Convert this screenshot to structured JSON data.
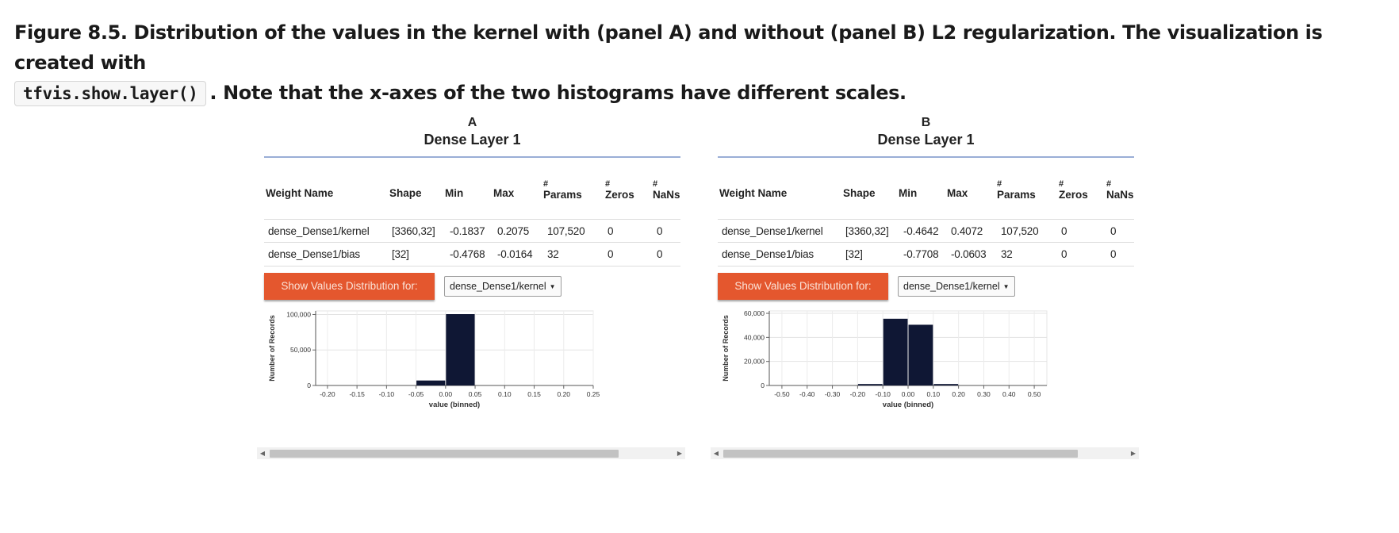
{
  "caption": {
    "prefix": "Figure 8.5. Distribution of the values in the kernel with (panel A) and without (panel B) L2 regularization. The visualization is created with",
    "code": "tfvis.show.layer()",
    "suffix": ". Note that the x-axes of the two histograms have different scales."
  },
  "panels": [
    {
      "letter": "A",
      "title": "Dense Layer 1",
      "columns": {
        "weight_name": "Weight Name",
        "shape": "Shape",
        "min": "Min",
        "max": "Max",
        "hash": "#",
        "params": "Params",
        "zeros": "Zeros",
        "nans": "NaNs"
      },
      "rows": [
        {
          "name": "dense_Dense1/kernel",
          "shape": "[3360,32]",
          "min": "-0.1837",
          "max": "0.2075",
          "params": "107,520",
          "zeros": "0",
          "nans": "0"
        },
        {
          "name": "dense_Dense1/bias",
          "shape": "[32]",
          "min": "-0.4768",
          "max": "-0.0164",
          "params": "32",
          "zeros": "0",
          "nans": "0"
        }
      ],
      "show_button": "Show Values Distribution for:",
      "selected_weight": "dense_Dense1/kernel",
      "bar_color": "#0f1734",
      "chart_data": {
        "type": "bar",
        "xlabel": "value (binned)",
        "ylabel": "Number of Records",
        "xlim": [
          -0.22,
          0.25
        ],
        "ylim": [
          0,
          105000
        ],
        "x_ticks": [
          "-0.20",
          "-0.15",
          "-0.10",
          "-0.05",
          "0.00",
          "0.05",
          "0.10",
          "0.15",
          "0.20",
          "0.25"
        ],
        "y_ticks": [
          "0",
          "50,000",
          "100,000"
        ],
        "bins": [
          {
            "x0": -0.05,
            "x1": 0.0,
            "value": 7000
          },
          {
            "x0": 0.0,
            "x1": 0.05,
            "value": 100500
          }
        ]
      }
    },
    {
      "letter": "B",
      "title": "Dense Layer 1",
      "columns": {
        "weight_name": "Weight Name",
        "shape": "Shape",
        "min": "Min",
        "max": "Max",
        "hash": "#",
        "params": "Params",
        "zeros": "Zeros",
        "nans": "NaNs"
      },
      "rows": [
        {
          "name": "dense_Dense1/kernel",
          "shape": "[3360,32]",
          "min": "-0.4642",
          "max": "0.4072",
          "params": "107,520",
          "zeros": "0",
          "nans": "0"
        },
        {
          "name": "dense_Dense1/bias",
          "shape": "[32]",
          "min": "-0.7708",
          "max": "-0.0603",
          "params": "32",
          "zeros": "0",
          "nans": "0"
        }
      ],
      "show_button": "Show Values Distribution for:",
      "selected_weight": "dense_Dense1/kernel",
      "bar_color": "#0f1734",
      "chart_data": {
        "type": "bar",
        "xlabel": "value (binned)",
        "ylabel": "Number of Records",
        "xlim": [
          -0.55,
          0.55
        ],
        "ylim": [
          0,
          62000
        ],
        "x_ticks": [
          "-0.50",
          "-0.40",
          "-0.30",
          "-0.20",
          "-0.10",
          "0.00",
          "0.10",
          "0.20",
          "0.30",
          "0.40",
          "0.50"
        ],
        "y_ticks": [
          "0",
          "20,000",
          "40,000",
          "60,000"
        ],
        "bins": [
          {
            "x0": -0.2,
            "x1": -0.1,
            "value": 1200
          },
          {
            "x0": -0.1,
            "x1": 0.0,
            "value": 55500
          },
          {
            "x0": 0.0,
            "x1": 0.1,
            "value": 50500
          },
          {
            "x0": 0.1,
            "x1": 0.2,
            "value": 1200
          }
        ]
      }
    }
  ]
}
